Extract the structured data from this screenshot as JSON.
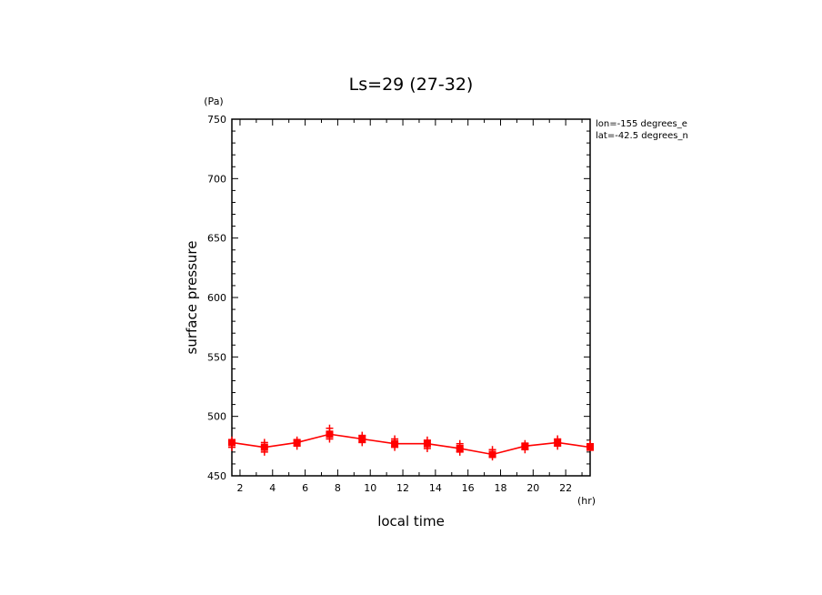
{
  "chart_data": {
    "type": "line",
    "title": "Ls=29 (27-32)",
    "xlabel": "local time",
    "ylabel": "surface pressure",
    "x_unit": "(hr)",
    "y_unit": "(Pa)",
    "annotations": [
      "lon=-155 degrees_e",
      "lat=-42.5 degrees_n"
    ],
    "xlim": [
      1.5,
      23.5
    ],
    "ylim": [
      450,
      750
    ],
    "xticks": [
      2,
      4,
      6,
      8,
      10,
      12,
      14,
      16,
      18,
      20,
      22
    ],
    "yticks": [
      450,
      500,
      550,
      600,
      650,
      700,
      750
    ],
    "grid": false,
    "color": "#ff0000",
    "series": [
      {
        "x": [
          1.5,
          3.5,
          5.5,
          7.5,
          9.5,
          11.5,
          13.5,
          15.5,
          17.5,
          19.5,
          21.5,
          23.5
        ],
        "values": [
          478,
          474,
          478,
          485,
          481,
          477,
          477,
          473,
          468,
          475,
          478,
          474
        ]
      }
    ],
    "scatter_points": [
      [
        1.5,
        480
      ],
      [
        1.5,
        477
      ],
      [
        1.5,
        474
      ],
      [
        3.5,
        478
      ],
      [
        3.5,
        474
      ],
      [
        3.5,
        470
      ],
      [
        5.5,
        480
      ],
      [
        5.5,
        478
      ],
      [
        5.5,
        475
      ],
      [
        7.5,
        490
      ],
      [
        7.5,
        486
      ],
      [
        7.5,
        481
      ],
      [
        9.5,
        484
      ],
      [
        9.5,
        481
      ],
      [
        9.5,
        478
      ],
      [
        11.5,
        481
      ],
      [
        11.5,
        478
      ],
      [
        11.5,
        474
      ],
      [
        13.5,
        480
      ],
      [
        13.5,
        477
      ],
      [
        13.5,
        473
      ],
      [
        15.5,
        477
      ],
      [
        15.5,
        473
      ],
      [
        15.5,
        470
      ],
      [
        17.5,
        472
      ],
      [
        17.5,
        469
      ],
      [
        17.5,
        466
      ],
      [
        19.5,
        477
      ],
      [
        19.5,
        475
      ],
      [
        19.5,
        472
      ],
      [
        21.5,
        481
      ],
      [
        21.5,
        478
      ],
      [
        21.5,
        475
      ],
      [
        23.5,
        477
      ],
      [
        23.5,
        474
      ]
    ]
  }
}
